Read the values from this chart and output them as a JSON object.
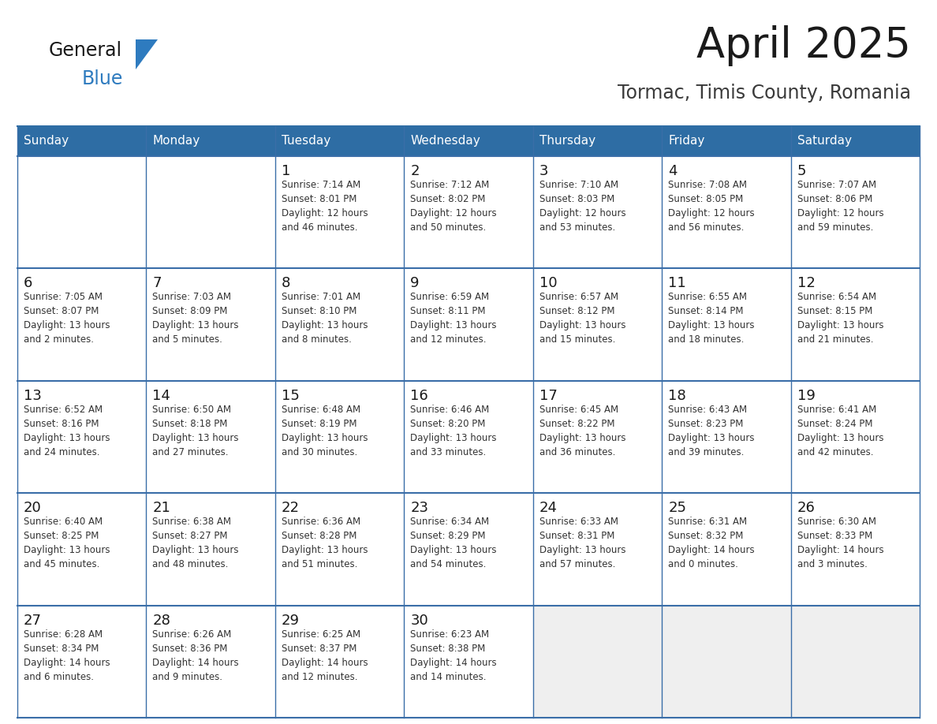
{
  "title": "April 2025",
  "subtitle": "Tormac, Timis County, Romania",
  "days_of_week": [
    "Sunday",
    "Monday",
    "Tuesday",
    "Wednesday",
    "Thursday",
    "Friday",
    "Saturday"
  ],
  "header_bg": "#2E6DA4",
  "header_text": "#FFFFFF",
  "cell_bg_white": "#FFFFFF",
  "cell_bg_light": "#EFEFEF",
  "cell_border": "#2E6DA4",
  "row_border": "#3A6EA8",
  "day_number_color": "#1A1A1A",
  "cell_text_color": "#333333",
  "title_color": "#1A1A1A",
  "subtitle_color": "#3A3A3A",
  "logo_general_color": "#1A1A1A",
  "logo_blue_color": "#2E7BBF",
  "weeks": [
    [
      {
        "day": null,
        "info": null
      },
      {
        "day": null,
        "info": null
      },
      {
        "day": 1,
        "info": "Sunrise: 7:14 AM\nSunset: 8:01 PM\nDaylight: 12 hours\nand 46 minutes."
      },
      {
        "day": 2,
        "info": "Sunrise: 7:12 AM\nSunset: 8:02 PM\nDaylight: 12 hours\nand 50 minutes."
      },
      {
        "day": 3,
        "info": "Sunrise: 7:10 AM\nSunset: 8:03 PM\nDaylight: 12 hours\nand 53 minutes."
      },
      {
        "day": 4,
        "info": "Sunrise: 7:08 AM\nSunset: 8:05 PM\nDaylight: 12 hours\nand 56 minutes."
      },
      {
        "day": 5,
        "info": "Sunrise: 7:07 AM\nSunset: 8:06 PM\nDaylight: 12 hours\nand 59 minutes."
      }
    ],
    [
      {
        "day": 6,
        "info": "Sunrise: 7:05 AM\nSunset: 8:07 PM\nDaylight: 13 hours\nand 2 minutes."
      },
      {
        "day": 7,
        "info": "Sunrise: 7:03 AM\nSunset: 8:09 PM\nDaylight: 13 hours\nand 5 minutes."
      },
      {
        "day": 8,
        "info": "Sunrise: 7:01 AM\nSunset: 8:10 PM\nDaylight: 13 hours\nand 8 minutes."
      },
      {
        "day": 9,
        "info": "Sunrise: 6:59 AM\nSunset: 8:11 PM\nDaylight: 13 hours\nand 12 minutes."
      },
      {
        "day": 10,
        "info": "Sunrise: 6:57 AM\nSunset: 8:12 PM\nDaylight: 13 hours\nand 15 minutes."
      },
      {
        "day": 11,
        "info": "Sunrise: 6:55 AM\nSunset: 8:14 PM\nDaylight: 13 hours\nand 18 minutes."
      },
      {
        "day": 12,
        "info": "Sunrise: 6:54 AM\nSunset: 8:15 PM\nDaylight: 13 hours\nand 21 minutes."
      }
    ],
    [
      {
        "day": 13,
        "info": "Sunrise: 6:52 AM\nSunset: 8:16 PM\nDaylight: 13 hours\nand 24 minutes."
      },
      {
        "day": 14,
        "info": "Sunrise: 6:50 AM\nSunset: 8:18 PM\nDaylight: 13 hours\nand 27 minutes."
      },
      {
        "day": 15,
        "info": "Sunrise: 6:48 AM\nSunset: 8:19 PM\nDaylight: 13 hours\nand 30 minutes."
      },
      {
        "day": 16,
        "info": "Sunrise: 6:46 AM\nSunset: 8:20 PM\nDaylight: 13 hours\nand 33 minutes."
      },
      {
        "day": 17,
        "info": "Sunrise: 6:45 AM\nSunset: 8:22 PM\nDaylight: 13 hours\nand 36 minutes."
      },
      {
        "day": 18,
        "info": "Sunrise: 6:43 AM\nSunset: 8:23 PM\nDaylight: 13 hours\nand 39 minutes."
      },
      {
        "day": 19,
        "info": "Sunrise: 6:41 AM\nSunset: 8:24 PM\nDaylight: 13 hours\nand 42 minutes."
      }
    ],
    [
      {
        "day": 20,
        "info": "Sunrise: 6:40 AM\nSunset: 8:25 PM\nDaylight: 13 hours\nand 45 minutes."
      },
      {
        "day": 21,
        "info": "Sunrise: 6:38 AM\nSunset: 8:27 PM\nDaylight: 13 hours\nand 48 minutes."
      },
      {
        "day": 22,
        "info": "Sunrise: 6:36 AM\nSunset: 8:28 PM\nDaylight: 13 hours\nand 51 minutes."
      },
      {
        "day": 23,
        "info": "Sunrise: 6:34 AM\nSunset: 8:29 PM\nDaylight: 13 hours\nand 54 minutes."
      },
      {
        "day": 24,
        "info": "Sunrise: 6:33 AM\nSunset: 8:31 PM\nDaylight: 13 hours\nand 57 minutes."
      },
      {
        "day": 25,
        "info": "Sunrise: 6:31 AM\nSunset: 8:32 PM\nDaylight: 14 hours\nand 0 minutes."
      },
      {
        "day": 26,
        "info": "Sunrise: 6:30 AM\nSunset: 8:33 PM\nDaylight: 14 hours\nand 3 minutes."
      }
    ],
    [
      {
        "day": 27,
        "info": "Sunrise: 6:28 AM\nSunset: 8:34 PM\nDaylight: 14 hours\nand 6 minutes."
      },
      {
        "day": 28,
        "info": "Sunrise: 6:26 AM\nSunset: 8:36 PM\nDaylight: 14 hours\nand 9 minutes."
      },
      {
        "day": 29,
        "info": "Sunrise: 6:25 AM\nSunset: 8:37 PM\nDaylight: 14 hours\nand 12 minutes."
      },
      {
        "day": 30,
        "info": "Sunrise: 6:23 AM\nSunset: 8:38 PM\nDaylight: 14 hours\nand 14 minutes."
      },
      {
        "day": null,
        "info": null
      },
      {
        "day": null,
        "info": null
      },
      {
        "day": null,
        "info": null
      }
    ]
  ]
}
